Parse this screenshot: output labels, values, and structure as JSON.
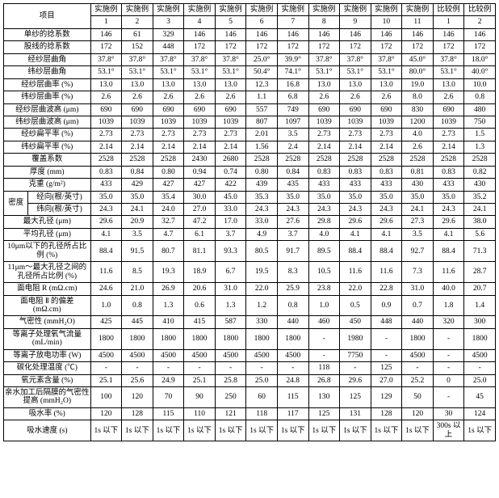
{
  "header": {
    "project": "项目",
    "cols": [
      {
        "top": "实施例",
        "bot": "1"
      },
      {
        "top": "实施例",
        "bot": "2"
      },
      {
        "top": "实施例",
        "bot": "3"
      },
      {
        "top": "实施例",
        "bot": "4"
      },
      {
        "top": "实施例",
        "bot": "5"
      },
      {
        "top": "实施例",
        "bot": "6"
      },
      {
        "top": "实施例",
        "bot": "7"
      },
      {
        "top": "实施例",
        "bot": "8"
      },
      {
        "top": "实施例",
        "bot": "9"
      },
      {
        "top": "实施例",
        "bot": "10"
      },
      {
        "top": "实施例",
        "bot": "11"
      },
      {
        "top": "比较例",
        "bot": "1"
      },
      {
        "top": "比较例",
        "bot": "2"
      }
    ]
  },
  "rows": [
    {
      "label": "单纱的捻系数",
      "cells": [
        "146",
        "61",
        "329",
        "146",
        "146",
        "146",
        "146",
        "146",
        "146",
        "146",
        "146",
        "146",
        "146"
      ]
    },
    {
      "label": "股线的捻系数",
      "cells": [
        "172",
        "152",
        "448",
        "172",
        "172",
        "172",
        "172",
        "172",
        "172",
        "172",
        "172",
        "172",
        "172"
      ]
    },
    {
      "label": "经纱层曲角",
      "cells": [
        "37.8°",
        "37.8°",
        "37.8°",
        "37.8°",
        "37.8°",
        "25.0°",
        "39.9°",
        "37.8°",
        "37.8°",
        "37.8°",
        "45.0°",
        "37.8°",
        "18.0°"
      ]
    },
    {
      "label": "纬纱层曲角",
      "cells": [
        "53.1°",
        "53.1°",
        "53.1°",
        "53.1°",
        "53.1°",
        "50.4°",
        "74.1°",
        "53.1°",
        "53.1°",
        "53.1°",
        "80.0°",
        "53.1°",
        "40.0°"
      ]
    },
    {
      "label": "经纱层曲率 (%)",
      "cells": [
        "13.0",
        "13.0",
        "13.0",
        "13.0",
        "13.0",
        "12.3",
        "16.8",
        "13.0",
        "13.0",
        "13.0",
        "19.0",
        "13.0",
        "10.0"
      ]
    },
    {
      "label": "纬纱层曲率 (%)",
      "cells": [
        "2.6",
        "2.6",
        "2.6",
        "2.6",
        "2.6",
        "1.1",
        "6.8",
        "2.6",
        "2.6",
        "2.6",
        "8.0",
        "2.6",
        "0.8"
      ]
    },
    {
      "label": "经纱层曲波高 (μm)",
      "cells": [
        "690",
        "690",
        "690",
        "690",
        "690",
        "557",
        "749",
        "690",
        "690",
        "690",
        "830",
        "690",
        "480"
      ]
    },
    {
      "label": "纬纱层曲波高 (μm)",
      "cells": [
        "1039",
        "1039",
        "1039",
        "1039",
        "1039",
        "807",
        "1097",
        "1039",
        "1039",
        "1039",
        "1200",
        "1039",
        "750"
      ]
    },
    {
      "label": "经纱扁平率 (%)",
      "cells": [
        "2.73",
        "2.73",
        "2.73",
        "2.73",
        "2.73",
        "2.01",
        "3.5",
        "2.73",
        "2.73",
        "2.73",
        "4.0",
        "2.73",
        "1.5"
      ]
    },
    {
      "label": "纬纱扁平率 (%)",
      "cells": [
        "2.14",
        "2.14",
        "2.14",
        "2.14",
        "2.14",
        "1.56",
        "2.4",
        "2.14",
        "2.14",
        "2.14",
        "2.6",
        "2.14",
        "1.3"
      ]
    },
    {
      "label": "覆盖系数",
      "cells": [
        "2528",
        "2528",
        "2528",
        "2430",
        "2680",
        "2528",
        "2528",
        "2528",
        "2528",
        "2528",
        "2528",
        "2528",
        "2528"
      ]
    },
    {
      "label": "厚度 (mm)",
      "cells": [
        "0.83",
        "0.84",
        "0.80",
        "0.94",
        "0.74",
        "0.80",
        "0.84",
        "0.83",
        "0.83",
        "0.83",
        "0.81",
        "0.83",
        "0.82"
      ]
    },
    {
      "label": "克重 (g/m²)",
      "cells": [
        "433",
        "429",
        "427",
        "427",
        "422",
        "439",
        "435",
        "433",
        "433",
        "433",
        "430",
        "433",
        "430"
      ]
    },
    {
      "group": "密度",
      "label": "经向(根/英寸)",
      "cells": [
        "35.0",
        "35.0",
        "35.4",
        "30.0",
        "45.0",
        "35.3",
        "35.0",
        "35.0",
        "35.0",
        "35.0",
        "35.0",
        "35.0",
        "35.2"
      ]
    },
    {
      "group": "密度",
      "label": "纬向(根/英寸)",
      "cells": [
        "24.3",
        "24.1",
        "24.0",
        "27.0",
        "33.0",
        "24.3",
        "24.3",
        "24.3",
        "24.3",
        "24.3",
        "24.1",
        "24.3",
        "24.1"
      ]
    },
    {
      "label": "最大孔径 (μm)",
      "cells": [
        "29.6",
        "20.9",
        "32.7",
        "47.2",
        "17.0",
        "33.0",
        "27.6",
        "29.8",
        "29.6",
        "29.6",
        "27.3",
        "29.6",
        "38.0"
      ]
    },
    {
      "label": "平均孔径 (μm)",
      "cells": [
        "4.1",
        "3.5",
        "4.7",
        "6.1",
        "3.7",
        "4.9",
        "3.7",
        "4.0",
        "4.1",
        "4.1",
        "3.5",
        "4.1",
        "5.6"
      ]
    },
    {
      "label": "10μm以下的孔径所占比例 (%)",
      "cells": [
        "88.4",
        "91.5",
        "80.7",
        "81.1",
        "93.3",
        "80.5",
        "91.7",
        "89.5",
        "88.4",
        "88.4",
        "92.7",
        "88.4",
        "71.3"
      ]
    },
    {
      "label": "11μm～最大孔径之间的孔径所占比例 (%)",
      "cells": [
        "11.6",
        "8.5",
        "19.3",
        "18.9",
        "6.7",
        "19.5",
        "8.3",
        "10.5",
        "11.6",
        "11.6",
        "7.3",
        "11.6",
        "28.7"
      ]
    },
    {
      "label": "面电阻 R (mΩ.cm)",
      "cells": [
        "24.6",
        "21.0",
        "26.9",
        "20.6",
        "31.0",
        "22.0",
        "25.9",
        "23.8",
        "22.0",
        "22.8",
        "31.0",
        "40.0",
        "20.7"
      ]
    },
    {
      "label": "面电阻 Ⅱ 的偏差\\n(mΩ.cm)",
      "cells": [
        "1.0",
        "0.8",
        "1.3",
        "0.6",
        "1.3",
        "1.2",
        "0.8",
        "1.0",
        "0.5",
        "0.9",
        "0.7",
        "1.8",
        "1.4"
      ]
    },
    {
      "label": "气密性 (mmH₂O)",
      "cells": [
        "425",
        "445",
        "410",
        "415",
        "587",
        "330",
        "440",
        "460",
        "450",
        "448",
        "440",
        "320",
        "300"
      ]
    },
    {
      "label": "等离子处理氧气流量\\n(mL/min)",
      "cells": [
        "1800",
        "1800",
        "1800",
        "1800",
        "1800",
        "1800",
        "1800",
        "-",
        "1980",
        "-",
        "1800",
        "-",
        "1800"
      ]
    },
    {
      "label": "等离子放电功率 (W)",
      "cells": [
        "4500",
        "4500",
        "4500",
        "4500",
        "4500",
        "4500",
        "4500",
        "-",
        "7750",
        "-",
        "4500",
        "-",
        "4500"
      ]
    },
    {
      "label": "碳化处理温度 (℃)",
      "cells": [
        "-",
        "-",
        "-",
        "-",
        "-",
        "-",
        "-",
        "118",
        "-",
        "125",
        "-",
        "-",
        "-"
      ]
    },
    {
      "label": "氧元素含量 (%)",
      "cells": [
        "25.1",
        "25.6",
        "24.9",
        "25.1",
        "25.8",
        "25.0",
        "24.8",
        "26.8",
        "29.6",
        "27.0",
        "25.2",
        "0",
        "25.0"
      ]
    },
    {
      "label": "亲水加工后隔膜的气密性提高 (mmH₂O)",
      "cells": [
        "100",
        "120",
        "70",
        "90",
        "250",
        "60",
        "115",
        "130",
        "125",
        "129",
        "50",
        "-",
        "45"
      ]
    },
    {
      "label": "吸水率 (%)",
      "cells": [
        "120",
        "128",
        "115",
        "110",
        "121",
        "118",
        "117",
        "125",
        "131",
        "128",
        "120",
        "30",
        "124"
      ]
    },
    {
      "label": "吸水速度 (s)",
      "cells": [
        "1s 以下",
        "1s 以下",
        "1s 以下",
        "1s 以下",
        "1s 以下",
        "1s 以下",
        "1s 以下",
        "1s 以下",
        "1s 以下",
        "1s 以下",
        "1s 以下",
        "300s 以上",
        "1s 以下"
      ]
    }
  ]
}
